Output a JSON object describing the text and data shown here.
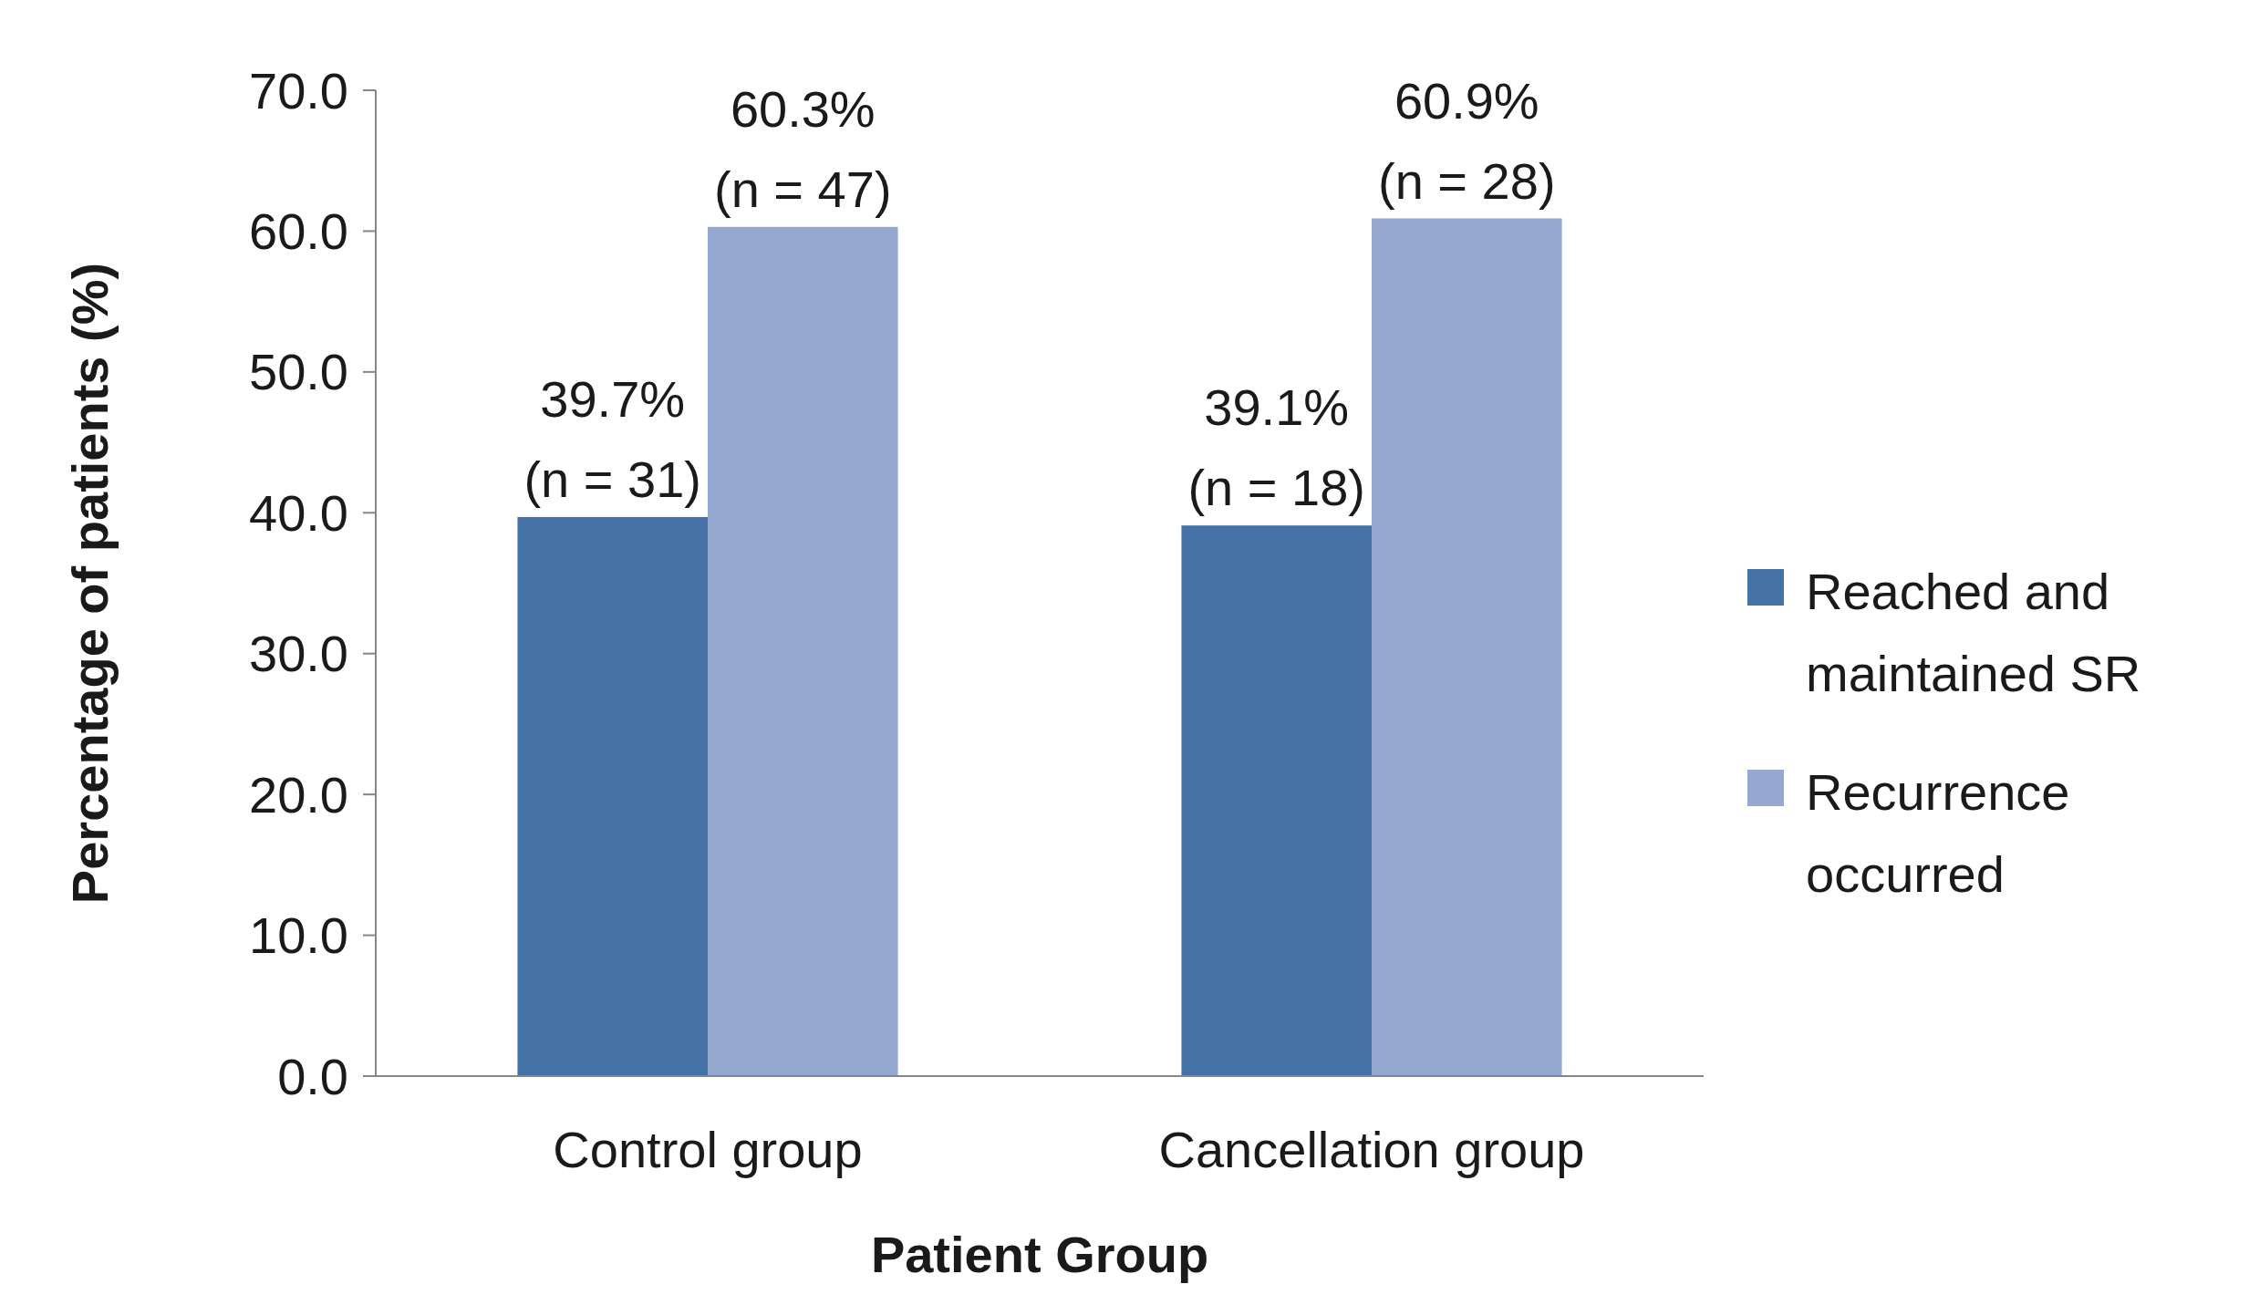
{
  "chart_data": {
    "type": "bar",
    "xlabel": "Patient Group",
    "ylabel": "Percentage of patients (%)",
    "categories": [
      "Control group",
      "Cancellation group"
    ],
    "series": [
      {
        "name": "Reached and maintained SR",
        "color": "#4573a7",
        "values": [
          39.7,
          39.1
        ],
        "value_labels": [
          "39.7% (n = 31)",
          "39.1% (n = 18)"
        ]
      },
      {
        "name": "Recurrence occurred",
        "color": "#95a9d0",
        "values": [
          60.3,
          60.9
        ],
        "value_labels": [
          "60.3% (n = 47)",
          "60.9% (n = 28)"
        ]
      }
    ],
    "ylim": [
      0,
      70
    ],
    "yticks": [
      {
        "value": 0,
        "label": "0.0"
      },
      {
        "value": 10,
        "label": "10.0"
      },
      {
        "value": 20,
        "label": "20.0"
      },
      {
        "value": 30,
        "label": "30.0"
      },
      {
        "value": 40,
        "label": "40.0"
      },
      {
        "value": 50,
        "label": "50.0"
      },
      {
        "value": 60,
        "label": "60.0"
      },
      {
        "value": 70,
        "label": "70.0"
      }
    ],
    "grid": false,
    "legend": "right"
  }
}
